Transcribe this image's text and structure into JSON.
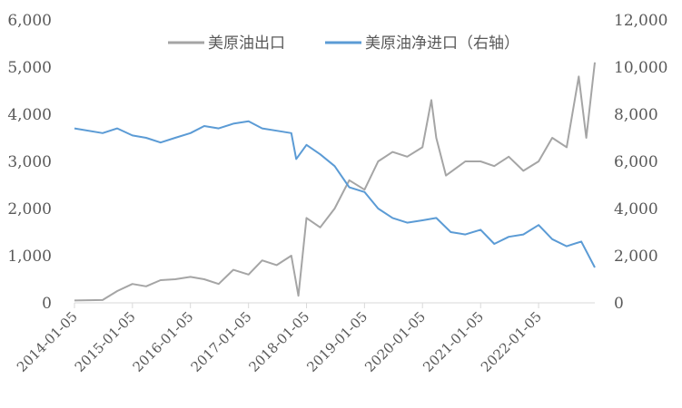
{
  "chart_data": {
    "type": "line",
    "x_axis": {
      "tick_labels": [
        "2014-01-05",
        "2015-01-05",
        "2016-01-05",
        "2017-01-05",
        "2018-01-05",
        "2019-01-05",
        "2020-01-05",
        "2021-01-05",
        "2022-01-05"
      ],
      "range": [
        "2014-01-05",
        "2022-12-25"
      ]
    },
    "y_left": {
      "ylim": [
        0,
        6000
      ],
      "tick_labels": [
        "0",
        "1,000",
        "2,000",
        "3,000",
        "4,000",
        "5,000",
        "6,000"
      ],
      "tick_values": [
        0,
        1000,
        2000,
        3000,
        4000,
        5000,
        6000
      ]
    },
    "y_right": {
      "ylim": [
        0,
        12000
      ],
      "tick_labels": [
        "0",
        "2,000",
        "4,000",
        "6,000",
        "8,000",
        "10,000",
        "12,000"
      ],
      "tick_values": [
        0,
        2000,
        4000,
        6000,
        8000,
        10000,
        12000
      ]
    },
    "grid": false,
    "legend": {
      "placement": "top"
    },
    "series": [
      {
        "name": "美原油出口",
        "axis": "left",
        "color": "#A5A5A5",
        "points": [
          [
            "2014-01-05",
            50
          ],
          [
            "2014-07-01",
            60
          ],
          [
            "2014-10-01",
            250
          ],
          [
            "2015-01-05",
            400
          ],
          [
            "2015-04-01",
            350
          ],
          [
            "2015-07-01",
            480
          ],
          [
            "2015-10-01",
            500
          ],
          [
            "2016-01-05",
            550
          ],
          [
            "2016-04-01",
            500
          ],
          [
            "2016-07-01",
            400
          ],
          [
            "2016-10-01",
            700
          ],
          [
            "2017-01-05",
            600
          ],
          [
            "2017-04-01",
            900
          ],
          [
            "2017-07-01",
            800
          ],
          [
            "2017-10-01",
            1000
          ],
          [
            "2017-11-15",
            150
          ],
          [
            "2018-01-05",
            1800
          ],
          [
            "2018-04-01",
            1600
          ],
          [
            "2018-07-01",
            2000
          ],
          [
            "2018-10-01",
            2600
          ],
          [
            "2019-01-05",
            2400
          ],
          [
            "2019-04-01",
            3000
          ],
          [
            "2019-07-01",
            3200
          ],
          [
            "2019-10-01",
            3100
          ],
          [
            "2020-01-05",
            3300
          ],
          [
            "2020-03-01",
            4300
          ],
          [
            "2020-04-01",
            3500
          ],
          [
            "2020-06-01",
            2700
          ],
          [
            "2020-10-01",
            3000
          ],
          [
            "2021-01-05",
            3000
          ],
          [
            "2021-04-01",
            2900
          ],
          [
            "2021-07-01",
            3100
          ],
          [
            "2021-10-01",
            2800
          ],
          [
            "2022-01-05",
            3000
          ],
          [
            "2022-04-01",
            3500
          ],
          [
            "2022-07-01",
            3300
          ],
          [
            "2022-09-15",
            4800
          ],
          [
            "2022-11-01",
            3500
          ],
          [
            "2022-12-25",
            5100
          ]
        ]
      },
      {
        "name": "美原油净进口（右轴）",
        "axis": "right",
        "color": "#5B9BD5",
        "points": [
          [
            "2014-01-05",
            7400
          ],
          [
            "2014-07-01",
            7200
          ],
          [
            "2014-10-01",
            7400
          ],
          [
            "2015-01-05",
            7100
          ],
          [
            "2015-04-01",
            7000
          ],
          [
            "2015-07-01",
            6800
          ],
          [
            "2015-10-01",
            7000
          ],
          [
            "2016-01-05",
            7200
          ],
          [
            "2016-04-01",
            7500
          ],
          [
            "2016-07-01",
            7400
          ],
          [
            "2016-10-01",
            7600
          ],
          [
            "2017-01-05",
            7700
          ],
          [
            "2017-04-01",
            7400
          ],
          [
            "2017-07-01",
            7300
          ],
          [
            "2017-10-01",
            7200
          ],
          [
            "2017-11-01",
            6100
          ],
          [
            "2018-01-05",
            6700
          ],
          [
            "2018-04-01",
            6300
          ],
          [
            "2018-07-01",
            5800
          ],
          [
            "2018-10-01",
            4900
          ],
          [
            "2019-01-05",
            4700
          ],
          [
            "2019-04-01",
            4000
          ],
          [
            "2019-07-01",
            3600
          ],
          [
            "2019-10-01",
            3400
          ],
          [
            "2020-01-05",
            3500
          ],
          [
            "2020-04-01",
            3600
          ],
          [
            "2020-07-01",
            3000
          ],
          [
            "2020-10-01",
            2900
          ],
          [
            "2021-01-05",
            3100
          ],
          [
            "2021-04-01",
            2500
          ],
          [
            "2021-07-01",
            2800
          ],
          [
            "2021-10-01",
            2900
          ],
          [
            "2022-01-05",
            3300
          ],
          [
            "2022-04-01",
            2700
          ],
          [
            "2022-07-01",
            2400
          ],
          [
            "2022-10-01",
            2600
          ],
          [
            "2022-12-25",
            1500
          ]
        ]
      }
    ]
  }
}
